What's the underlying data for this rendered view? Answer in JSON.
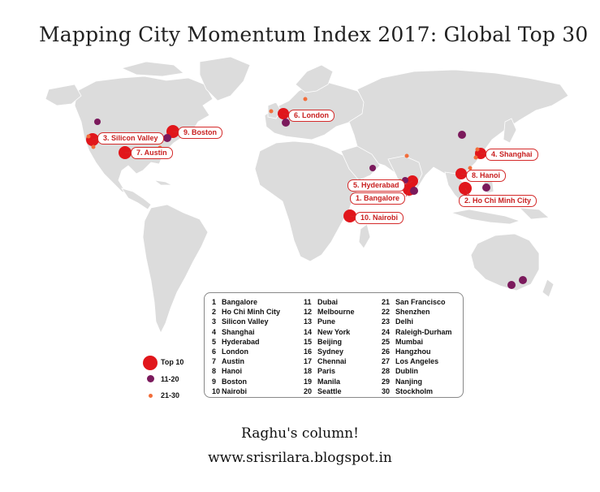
{
  "title": "Mapping City Momentum Index 2017: Global Top 30",
  "colors": {
    "land": "#dcdcdc",
    "top10": "#e1161b",
    "rank11_20": "#7b1a5c",
    "rank21_30": "#f26d3a",
    "callout_text": "#c81e1e"
  },
  "callouts": [
    {
      "label": "1. Bangalore"
    },
    {
      "label": "2. Ho Chi Minh City"
    },
    {
      "label": "3. Silicon Valley"
    },
    {
      "label": "4. Shanghai"
    },
    {
      "label": "5. Hyderabad"
    },
    {
      "label": "6. London"
    },
    {
      "label": "7. Austin"
    },
    {
      "label": "8. Hanoi"
    },
    {
      "label": "9. Boston"
    },
    {
      "label": "10. Nairobi"
    }
  ],
  "ranking": [
    {
      "rank": "1",
      "city": "Bangalore"
    },
    {
      "rank": "2",
      "city": "Ho Chi Minh City"
    },
    {
      "rank": "3",
      "city": "Silicon Valley"
    },
    {
      "rank": "4",
      "city": "Shanghai"
    },
    {
      "rank": "5",
      "city": "Hyderabad"
    },
    {
      "rank": "6",
      "city": "London"
    },
    {
      "rank": "7",
      "city": "Austin"
    },
    {
      "rank": "8",
      "city": "Hanoi"
    },
    {
      "rank": "9",
      "city": "Boston"
    },
    {
      "rank": "10",
      "city": "Nairobi"
    },
    {
      "rank": "11",
      "city": "Dubai"
    },
    {
      "rank": "12",
      "city": "Melbourne"
    },
    {
      "rank": "13",
      "city": "Pune"
    },
    {
      "rank": "14",
      "city": "New York"
    },
    {
      "rank": "15",
      "city": "Beijing"
    },
    {
      "rank": "16",
      "city": "Sydney"
    },
    {
      "rank": "17",
      "city": "Chennai"
    },
    {
      "rank": "18",
      "city": "Paris"
    },
    {
      "rank": "19",
      "city": "Manila"
    },
    {
      "rank": "20",
      "city": "Seattle"
    },
    {
      "rank": "21",
      "city": "San Francisco"
    },
    {
      "rank": "22",
      "city": "Shenzhen"
    },
    {
      "rank": "23",
      "city": "Delhi"
    },
    {
      "rank": "24",
      "city": "Raleigh-Durham"
    },
    {
      "rank": "25",
      "city": "Mumbai"
    },
    {
      "rank": "26",
      "city": "Hangzhou"
    },
    {
      "rank": "27",
      "city": "Los Angeles"
    },
    {
      "rank": "28",
      "city": "Dublin"
    },
    {
      "rank": "29",
      "city": "Nanjing"
    },
    {
      "rank": "30",
      "city": "Stockholm"
    }
  ],
  "legend": [
    {
      "label": "Top 10"
    },
    {
      "label": "11-20"
    },
    {
      "label": "21-30"
    }
  ],
  "footer": {
    "line1": "Raghu's column!",
    "line2": "www.srisrilara.blogspot.in"
  }
}
